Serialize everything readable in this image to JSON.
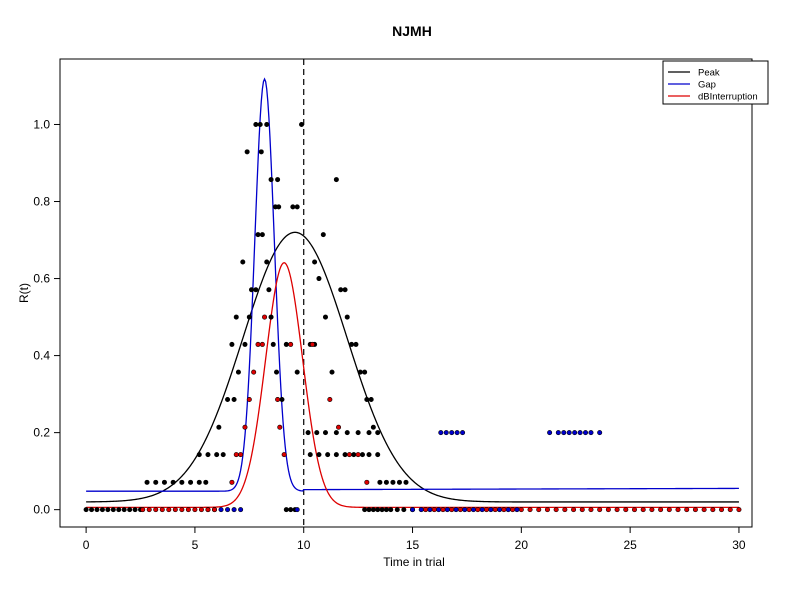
{
  "chart_data": {
    "type": "scatter",
    "title": "NJMH",
    "xlabel": "Time in trial",
    "ylabel": "R(t)",
    "xlim": [
      -1.2,
      30.6
    ],
    "ylim": [
      -0.045,
      1.17
    ],
    "xticks": [
      0,
      5,
      10,
      15,
      20,
      25,
      30
    ],
    "yticks": [
      0.0,
      0.2,
      0.4,
      0.6,
      0.8,
      1.0
    ],
    "xtick_labels": [
      "0",
      "5",
      "10",
      "15",
      "20",
      "25",
      "30"
    ],
    "ytick_labels": [
      "0.0",
      "0.2",
      "0.4",
      "0.6",
      "0.8",
      "1.0"
    ],
    "reference_line": {
      "x": 10,
      "style": "dashed"
    },
    "legend": {
      "position": "top-right",
      "entries": [
        {
          "label": "Peak",
          "color": "#000000"
        },
        {
          "label": "Gap",
          "color": "#0000cc"
        },
        {
          "label": "dBInterruption",
          "color": "#dd0000"
        }
      ]
    },
    "series": [
      {
        "name": "Peak",
        "color": "#000000",
        "points": [
          [
            0.0,
            0.0
          ],
          [
            0.25,
            0.0
          ],
          [
            0.5,
            0.0
          ],
          [
            0.75,
            0.0
          ],
          [
            1.0,
            0.0
          ],
          [
            1.25,
            0.0
          ],
          [
            1.5,
            0.0
          ],
          [
            1.75,
            0.0
          ],
          [
            2.0,
            0.0
          ],
          [
            2.25,
            0.0
          ],
          [
            2.5,
            0.0
          ],
          [
            2.8,
            0.071
          ],
          [
            3.2,
            0.071
          ],
          [
            3.6,
            0.071
          ],
          [
            4.0,
            0.071
          ],
          [
            4.4,
            0.071
          ],
          [
            4.8,
            0.071
          ],
          [
            5.2,
            0.071
          ],
          [
            5.5,
            0.071
          ],
          [
            5.2,
            0.143
          ],
          [
            5.6,
            0.143
          ],
          [
            6.0,
            0.143
          ],
          [
            6.3,
            0.143
          ],
          [
            6.1,
            0.214
          ],
          [
            6.5,
            0.286
          ],
          [
            6.8,
            0.286
          ],
          [
            7.0,
            0.357
          ],
          [
            6.7,
            0.429
          ],
          [
            6.9,
            0.5
          ],
          [
            7.3,
            0.429
          ],
          [
            7.5,
            0.5
          ],
          [
            7.6,
            0.571
          ],
          [
            7.8,
            0.571
          ],
          [
            7.2,
            0.643
          ],
          [
            7.9,
            0.714
          ],
          [
            7.4,
            0.929
          ],
          [
            7.8,
            1.0
          ],
          [
            8.0,
            1.0
          ],
          [
            8.05,
            0.929
          ],
          [
            8.3,
            1.0
          ],
          [
            8.5,
            0.857
          ],
          [
            8.7,
            0.786
          ],
          [
            8.85,
            0.786
          ],
          [
            8.8,
            0.857
          ],
          [
            8.1,
            0.714
          ],
          [
            8.3,
            0.643
          ],
          [
            8.4,
            0.571
          ],
          [
            8.5,
            0.5
          ],
          [
            8.6,
            0.429
          ],
          [
            8.75,
            0.357
          ],
          [
            9.0,
            0.286
          ],
          [
            9.2,
            0.429
          ],
          [
            9.5,
            0.786
          ],
          [
            9.7,
            0.786
          ],
          [
            9.9,
            1.0
          ],
          [
            9.7,
            0.357
          ],
          [
            9.2,
            0.0
          ],
          [
            9.4,
            0.0
          ],
          [
            9.6,
            0.0
          ],
          [
            10.3,
            0.429
          ],
          [
            10.5,
            0.429
          ],
          [
            10.5,
            0.643
          ],
          [
            10.7,
            0.6
          ],
          [
            10.9,
            0.714
          ],
          [
            11.0,
            0.5
          ],
          [
            11.3,
            0.357
          ],
          [
            11.5,
            0.857
          ],
          [
            11.7,
            0.571
          ],
          [
            11.9,
            0.571
          ],
          [
            12.0,
            0.5
          ],
          [
            12.2,
            0.429
          ],
          [
            12.4,
            0.429
          ],
          [
            12.6,
            0.357
          ],
          [
            12.8,
            0.357
          ],
          [
            12.9,
            0.286
          ],
          [
            13.1,
            0.286
          ],
          [
            13.2,
            0.214
          ],
          [
            13.0,
            0.143
          ],
          [
            13.4,
            0.143
          ],
          [
            10.2,
            0.2
          ],
          [
            10.6,
            0.2
          ],
          [
            11.0,
            0.2
          ],
          [
            11.5,
            0.2
          ],
          [
            12.0,
            0.2
          ],
          [
            12.5,
            0.2
          ],
          [
            13.0,
            0.2
          ],
          [
            13.4,
            0.2
          ],
          [
            10.3,
            0.143
          ],
          [
            10.7,
            0.143
          ],
          [
            11.1,
            0.143
          ],
          [
            11.5,
            0.143
          ],
          [
            11.9,
            0.143
          ],
          [
            12.3,
            0.143
          ],
          [
            12.7,
            0.143
          ],
          [
            13.5,
            0.071
          ],
          [
            13.8,
            0.071
          ],
          [
            14.1,
            0.071
          ],
          [
            14.4,
            0.071
          ],
          [
            14.7,
            0.071
          ],
          [
            12.8,
            0.0
          ],
          [
            13.0,
            0.0
          ],
          [
            13.2,
            0.0
          ],
          [
            13.4,
            0.0
          ],
          [
            13.6,
            0.0
          ],
          [
            13.8,
            0.0
          ],
          [
            14.0,
            0.0
          ],
          [
            14.3,
            0.0
          ],
          [
            14.6,
            0.0
          ],
          [
            15.0,
            0.0
          ]
        ]
      },
      {
        "name": "Gap",
        "color": "#0000cc",
        "points": [
          [
            16.3,
            0.2
          ],
          [
            16.55,
            0.2
          ],
          [
            16.8,
            0.2
          ],
          [
            17.05,
            0.2
          ],
          [
            17.3,
            0.2
          ],
          [
            21.3,
            0.2
          ],
          [
            21.7,
            0.2
          ],
          [
            21.95,
            0.2
          ],
          [
            22.2,
            0.2
          ],
          [
            22.45,
            0.2
          ],
          [
            22.7,
            0.2
          ],
          [
            22.95,
            0.2
          ],
          [
            23.2,
            0.2
          ],
          [
            23.6,
            0.2
          ],
          [
            5.6,
            0.0
          ],
          [
            5.9,
            0.0
          ],
          [
            6.2,
            0.0
          ],
          [
            6.5,
            0.0
          ],
          [
            6.8,
            0.0
          ],
          [
            7.1,
            0.0
          ],
          [
            9.7,
            0.0
          ],
          [
            15.0,
            0.0
          ],
          [
            15.4,
            0.0
          ],
          [
            15.8,
            0.0
          ],
          [
            16.2,
            0.0
          ],
          [
            16.6,
            0.0
          ],
          [
            17.0,
            0.0
          ],
          [
            17.4,
            0.0
          ],
          [
            17.8,
            0.0
          ],
          [
            18.2,
            0.0
          ],
          [
            18.6,
            0.0
          ],
          [
            19.0,
            0.0
          ],
          [
            19.4,
            0.0
          ],
          [
            19.8,
            0.0
          ]
        ]
      },
      {
        "name": "dBInterruption",
        "color": "#dd0000",
        "points": [
          [
            2.6,
            0.0
          ],
          [
            2.9,
            0.0
          ],
          [
            3.2,
            0.0
          ],
          [
            3.5,
            0.0
          ],
          [
            3.8,
            0.0
          ],
          [
            4.1,
            0.0
          ],
          [
            4.4,
            0.0
          ],
          [
            4.7,
            0.0
          ],
          [
            5.0,
            0.0
          ],
          [
            5.3,
            0.0
          ],
          [
            5.6,
            0.0
          ],
          [
            5.9,
            0.0
          ],
          [
            6.7,
            0.071
          ],
          [
            6.9,
            0.143
          ],
          [
            7.1,
            0.143
          ],
          [
            7.3,
            0.214
          ],
          [
            7.5,
            0.286
          ],
          [
            7.7,
            0.357
          ],
          [
            7.9,
            0.429
          ],
          [
            8.1,
            0.429
          ],
          [
            8.2,
            0.5
          ],
          [
            8.8,
            0.286
          ],
          [
            8.9,
            0.214
          ],
          [
            9.1,
            0.143
          ],
          [
            10.4,
            0.429
          ],
          [
            11.2,
            0.286
          ],
          [
            11.6,
            0.214
          ],
          [
            12.1,
            0.143
          ],
          [
            12.5,
            0.143
          ],
          [
            12.9,
            0.071
          ],
          [
            9.4,
            0.429
          ],
          [
            15.6,
            0.0
          ],
          [
            16.0,
            0.0
          ],
          [
            16.4,
            0.0
          ],
          [
            16.8,
            0.0
          ],
          [
            17.2,
            0.0
          ],
          [
            17.6,
            0.0
          ],
          [
            18.0,
            0.0
          ],
          [
            18.4,
            0.0
          ],
          [
            18.8,
            0.0
          ],
          [
            19.2,
            0.0
          ],
          [
            19.6,
            0.0
          ],
          [
            20.0,
            0.0
          ],
          [
            20.4,
            0.0
          ],
          [
            20.8,
            0.0
          ],
          [
            21.2,
            0.0
          ],
          [
            21.6,
            0.0
          ],
          [
            22.0,
            0.0
          ],
          [
            22.4,
            0.0
          ],
          [
            22.8,
            0.0
          ],
          [
            23.2,
            0.0
          ],
          [
            23.6,
            0.0
          ],
          [
            24.0,
            0.0
          ],
          [
            24.4,
            0.0
          ],
          [
            24.8,
            0.0
          ],
          [
            25.2,
            0.0
          ],
          [
            25.6,
            0.0
          ],
          [
            26.0,
            0.0
          ],
          [
            26.4,
            0.0
          ],
          [
            26.8,
            0.0
          ],
          [
            27.2,
            0.0
          ],
          [
            27.6,
            0.0
          ],
          [
            28.0,
            0.0
          ],
          [
            28.4,
            0.0
          ],
          [
            28.8,
            0.0
          ],
          [
            29.2,
            0.0
          ],
          [
            29.6,
            0.0
          ],
          [
            30.0,
            0.0
          ]
        ]
      }
    ],
    "curves": [
      {
        "name": "Peak",
        "color": "#000000",
        "kind": "gaussian",
        "amp": 0.7,
        "mu": 9.6,
        "sigma": 2.4,
        "base": 0.02,
        "xmin": 0,
        "xmax": 30
      },
      {
        "name": "Gap",
        "color": "#0000cc",
        "kind": "gaussian",
        "amp": 1.07,
        "mu": 8.2,
        "sigma": 0.45,
        "base": 0.048,
        "base_right": 0.052,
        "slope_after": 0.00016,
        "drop_at": 10.0,
        "xmin": 0,
        "xmax": 30
      },
      {
        "name": "dBInterruption",
        "color": "#dd0000",
        "kind": "gaussian",
        "amp": 0.635,
        "mu": 9.1,
        "sigma": 0.85,
        "base": 0.006,
        "xmin": 0,
        "xmax": 30
      }
    ]
  }
}
